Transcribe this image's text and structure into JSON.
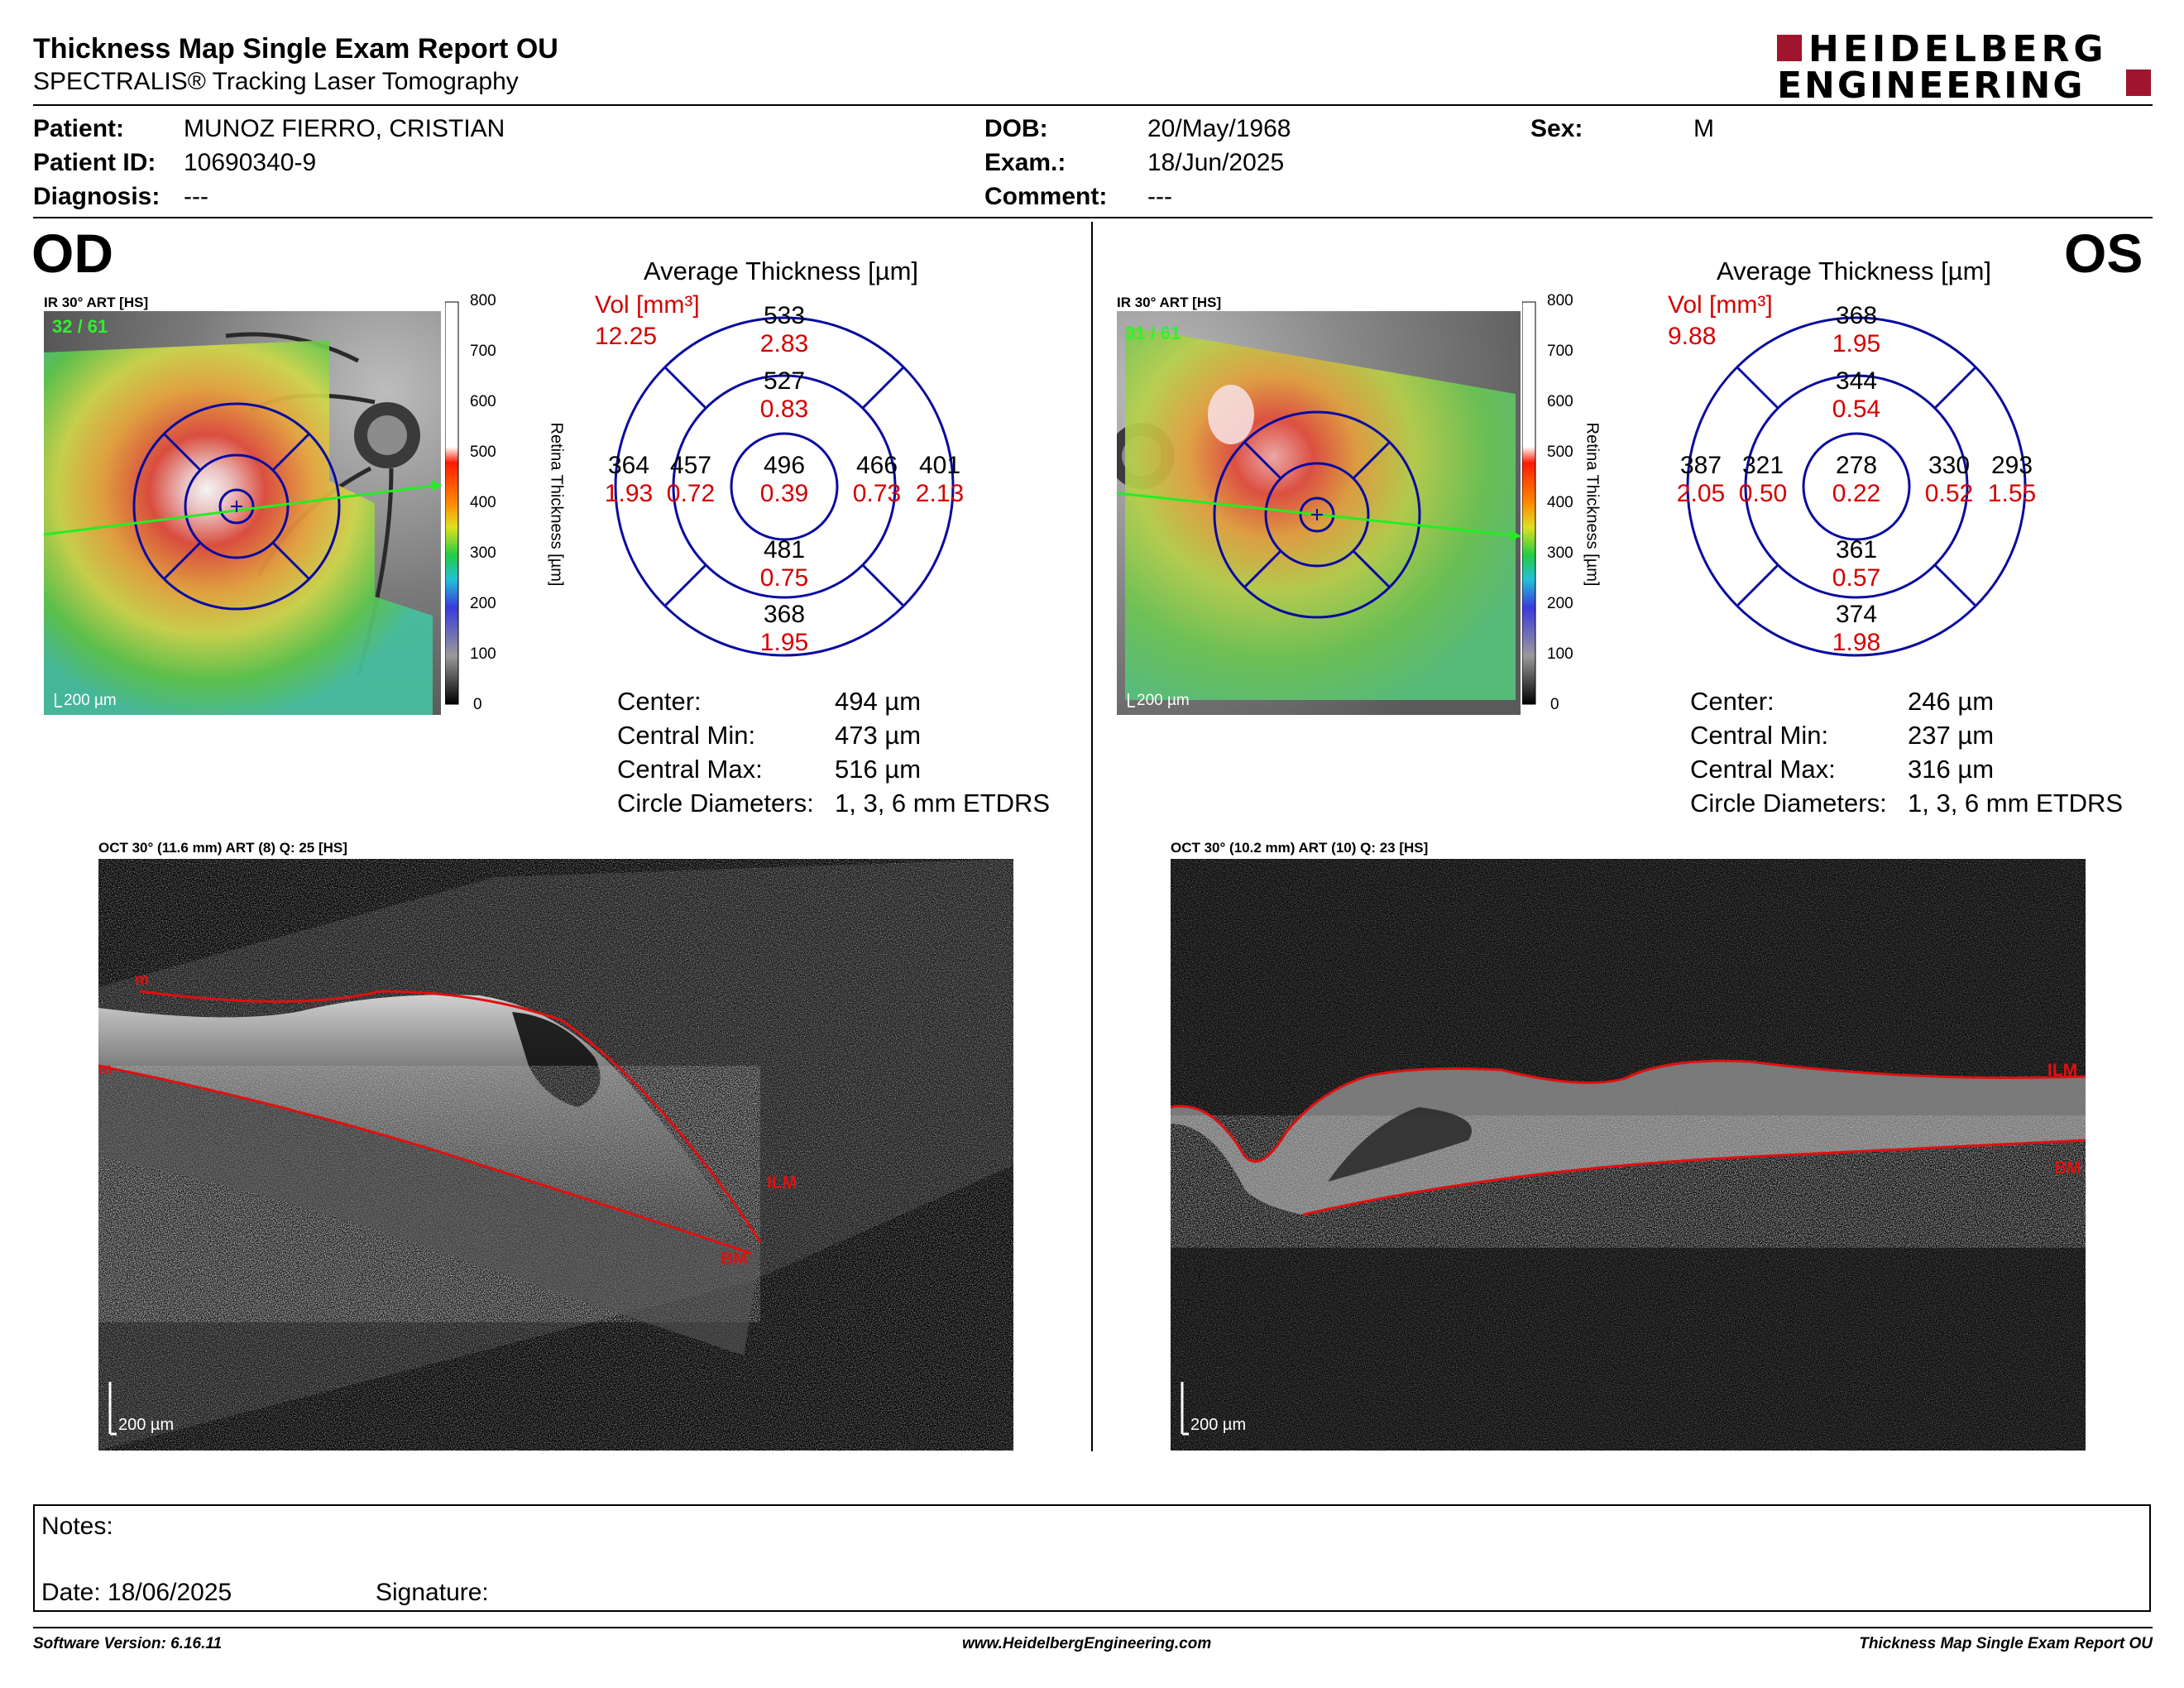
{
  "header": {
    "title": "Thickness Map Single Exam Report OU",
    "subtitle": "SPECTRALIS® Tracking Laser Tomography",
    "logo_line1": "HEIDELBERG",
    "logo_line2": "ENGINEERING",
    "logo_color": "#a0142d"
  },
  "patient": {
    "patient_label": "Patient:",
    "patient_value": "MUNOZ FIERRO, CRISTIAN",
    "id_label": "Patient ID:",
    "id_value": "10690340-9",
    "diagnosis_label": "Diagnosis:",
    "diagnosis_value": "---",
    "dob_label": "DOB:",
    "dob_value": "20/May/1968",
    "exam_label": "Exam.:",
    "exam_value": "18/Jun/2025",
    "comment_label": "Comment:",
    "comment_value": "---",
    "sex_label": "Sex:",
    "sex_value": "M"
  },
  "od": {
    "eye_label": "OD",
    "ir_caption": "IR 30° ART [HS]",
    "frames": "32 / 61",
    "scale": "200 µm",
    "colorbar_ticks": [
      "800",
      "700",
      "600",
      "500",
      "400",
      "300",
      "200",
      "100",
      "0"
    ],
    "colorbar_label": "Retina Thickness [µm]",
    "avg_title": "Average Thickness [µm]",
    "vol_label": "Vol [mm³]",
    "vol_total": "12.25",
    "sectors": {
      "outer_top": {
        "t": "533",
        "v": "2.83"
      },
      "inner_top": {
        "t": "527",
        "v": "0.83"
      },
      "outer_left": {
        "t": "364",
        "v": "1.93"
      },
      "inner_left": {
        "t": "457",
        "v": "0.72"
      },
      "center": {
        "t": "496",
        "v": "0.39"
      },
      "inner_right": {
        "t": "466",
        "v": "0.73"
      },
      "outer_right": {
        "t": "401",
        "v": "2.13"
      },
      "inner_bottom": {
        "t": "481",
        "v": "0.75"
      },
      "outer_bottom": {
        "t": "368",
        "v": "1.95"
      }
    },
    "stats": [
      {
        "label": "Center:",
        "value": "494 µm"
      },
      {
        "label": "Central Min:",
        "value": "473 µm"
      },
      {
        "label": "Central Max:",
        "value": "516 µm"
      },
      {
        "label": "Circle Diameters:",
        "value": "1, 3, 6 mm ETDRS"
      }
    ],
    "oct_caption": "OCT 30° (11.6 mm) ART (8) Q: 25 [HS]",
    "oct_scale": "200 µm",
    "ilm": "ILM",
    "bm": "BM",
    "edge_label_top": "m",
    "edge_label_bottom": "m"
  },
  "os": {
    "eye_label": "OS",
    "ir_caption": "IR 30° ART [HS]",
    "frames": "31 / 61",
    "scale": "200 µm",
    "colorbar_ticks": [
      "800",
      "700",
      "600",
      "500",
      "400",
      "300",
      "200",
      "100",
      "0"
    ],
    "colorbar_label": "Retina Thickness [µm]",
    "avg_title": "Average Thickness [µm]",
    "vol_label": "Vol [mm³]",
    "vol_total": "9.88",
    "sectors": {
      "outer_top": {
        "t": "368",
        "v": "1.95"
      },
      "inner_top": {
        "t": "344",
        "v": "0.54"
      },
      "outer_left": {
        "t": "387",
        "v": "2.05"
      },
      "inner_left": {
        "t": "321",
        "v": "0.50"
      },
      "center": {
        "t": "278",
        "v": "0.22"
      },
      "inner_right": {
        "t": "330",
        "v": "0.52"
      },
      "outer_right": {
        "t": "293",
        "v": "1.55"
      },
      "inner_bottom": {
        "t": "361",
        "v": "0.57"
      },
      "outer_bottom": {
        "t": "374",
        "v": "1.98"
      }
    },
    "stats": [
      {
        "label": "Center:",
        "value": "246 µm"
      },
      {
        "label": "Central Min:",
        "value": "237 µm"
      },
      {
        "label": "Central Max:",
        "value": "316 µm"
      },
      {
        "label": "Circle Diameters:",
        "value": "1, 3, 6 mm ETDRS"
      }
    ],
    "oct_caption": "OCT 30° (10.2 mm) ART (10) Q: 23 [HS]",
    "oct_scale": "200 µm",
    "ilm": "ILM",
    "bm": "BM"
  },
  "notes": {
    "notes_label": "Notes:",
    "date_label": "Date: 18/06/2025",
    "signature_label": "Signature:"
  },
  "footer": {
    "software": "Software Version: 6.16.11",
    "website": "www.HeidelbergEngineering.com",
    "report": "Thickness Map Single Exam Report OU"
  }
}
